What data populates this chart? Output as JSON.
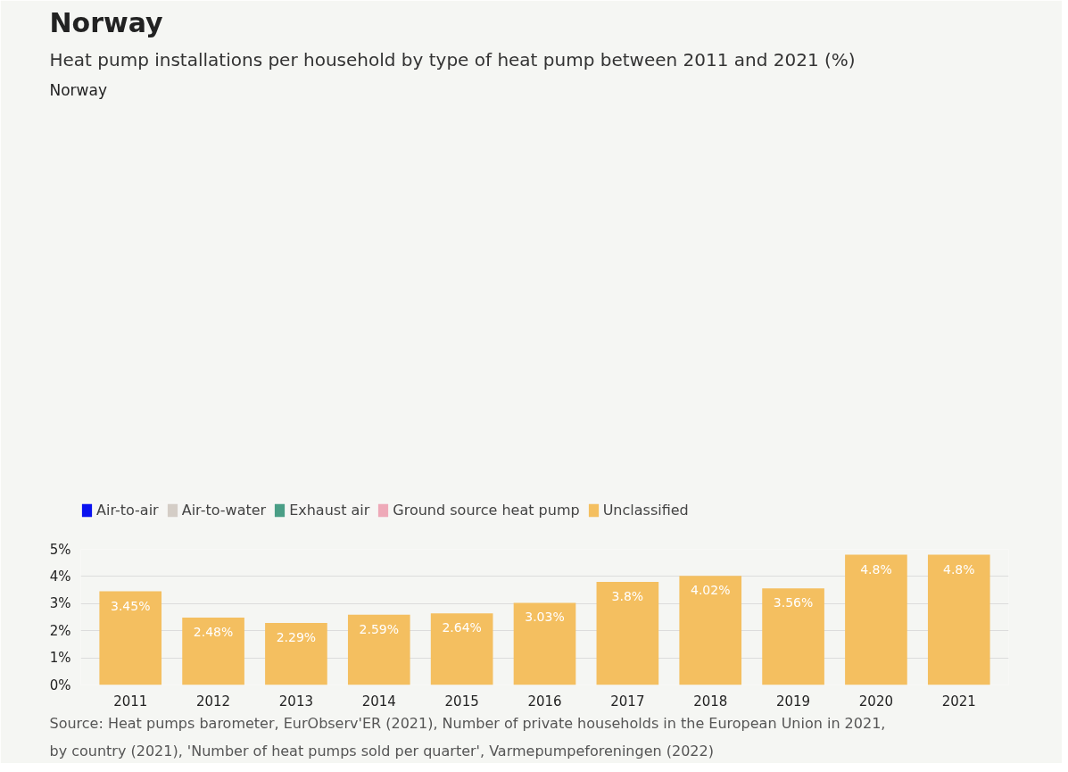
{
  "chart_data": {
    "type": "bar",
    "title": "Norway",
    "subtitle": "Heat pump installations per household by type of heat pump between 2011 and 2021 (%)",
    "categories": [
      "2011",
      "2012",
      "2013",
      "2014",
      "2015",
      "2016",
      "2017",
      "2018",
      "2019",
      "2020",
      "2021"
    ],
    "series": [
      {
        "name": "Air-to-air",
        "color": "#0a12f0",
        "values": [
          null,
          null,
          null,
          null,
          null,
          null,
          null,
          null,
          null,
          null,
          null
        ]
      },
      {
        "name": "Air-to-water",
        "color": "#d4cdc6",
        "values": [
          null,
          null,
          null,
          null,
          null,
          null,
          null,
          null,
          null,
          null,
          null
        ]
      },
      {
        "name": "Exhaust air",
        "color": "#4a9e86",
        "values": [
          null,
          null,
          null,
          null,
          null,
          null,
          null,
          null,
          null,
          null,
          null
        ]
      },
      {
        "name": "Ground source heat pump",
        "color": "#eea9b8",
        "values": [
          null,
          null,
          null,
          null,
          null,
          null,
          null,
          null,
          null,
          null,
          null
        ]
      },
      {
        "name": "Unclassified",
        "color": "#f4bf60",
        "values": [
          3.45,
          2.48,
          2.29,
          2.59,
          2.64,
          3.03,
          3.8,
          4.02,
          3.56,
          4.8,
          4.8
        ],
        "value_labels": [
          "3.45%",
          "2.48%",
          "2.29%",
          "2.59%",
          "2.64%",
          "3.03%",
          "3.8%",
          "4.02%",
          "3.56%",
          "4.8%",
          "4.8%"
        ]
      }
    ],
    "ylim": [
      0,
      5
    ],
    "yticks": [
      {
        "value": 0,
        "label": "0%"
      },
      {
        "value": 1,
        "label": "1%"
      },
      {
        "value": 2,
        "label": "2%"
      },
      {
        "value": 3,
        "label": "3%"
      },
      {
        "value": 4,
        "label": "4%"
      },
      {
        "value": 5,
        "label": "5%"
      }
    ],
    "grid": "y",
    "legend": "top left",
    "annotations": [
      "Norway",
      "Source: Heat pumps barometer, EurObserv'ER (2021), Number of private households in the European Union in 2021, by country (2021), 'Number of heat pumps sold per quarter', Varmepumpeforeningen (2022)"
    ]
  }
}
